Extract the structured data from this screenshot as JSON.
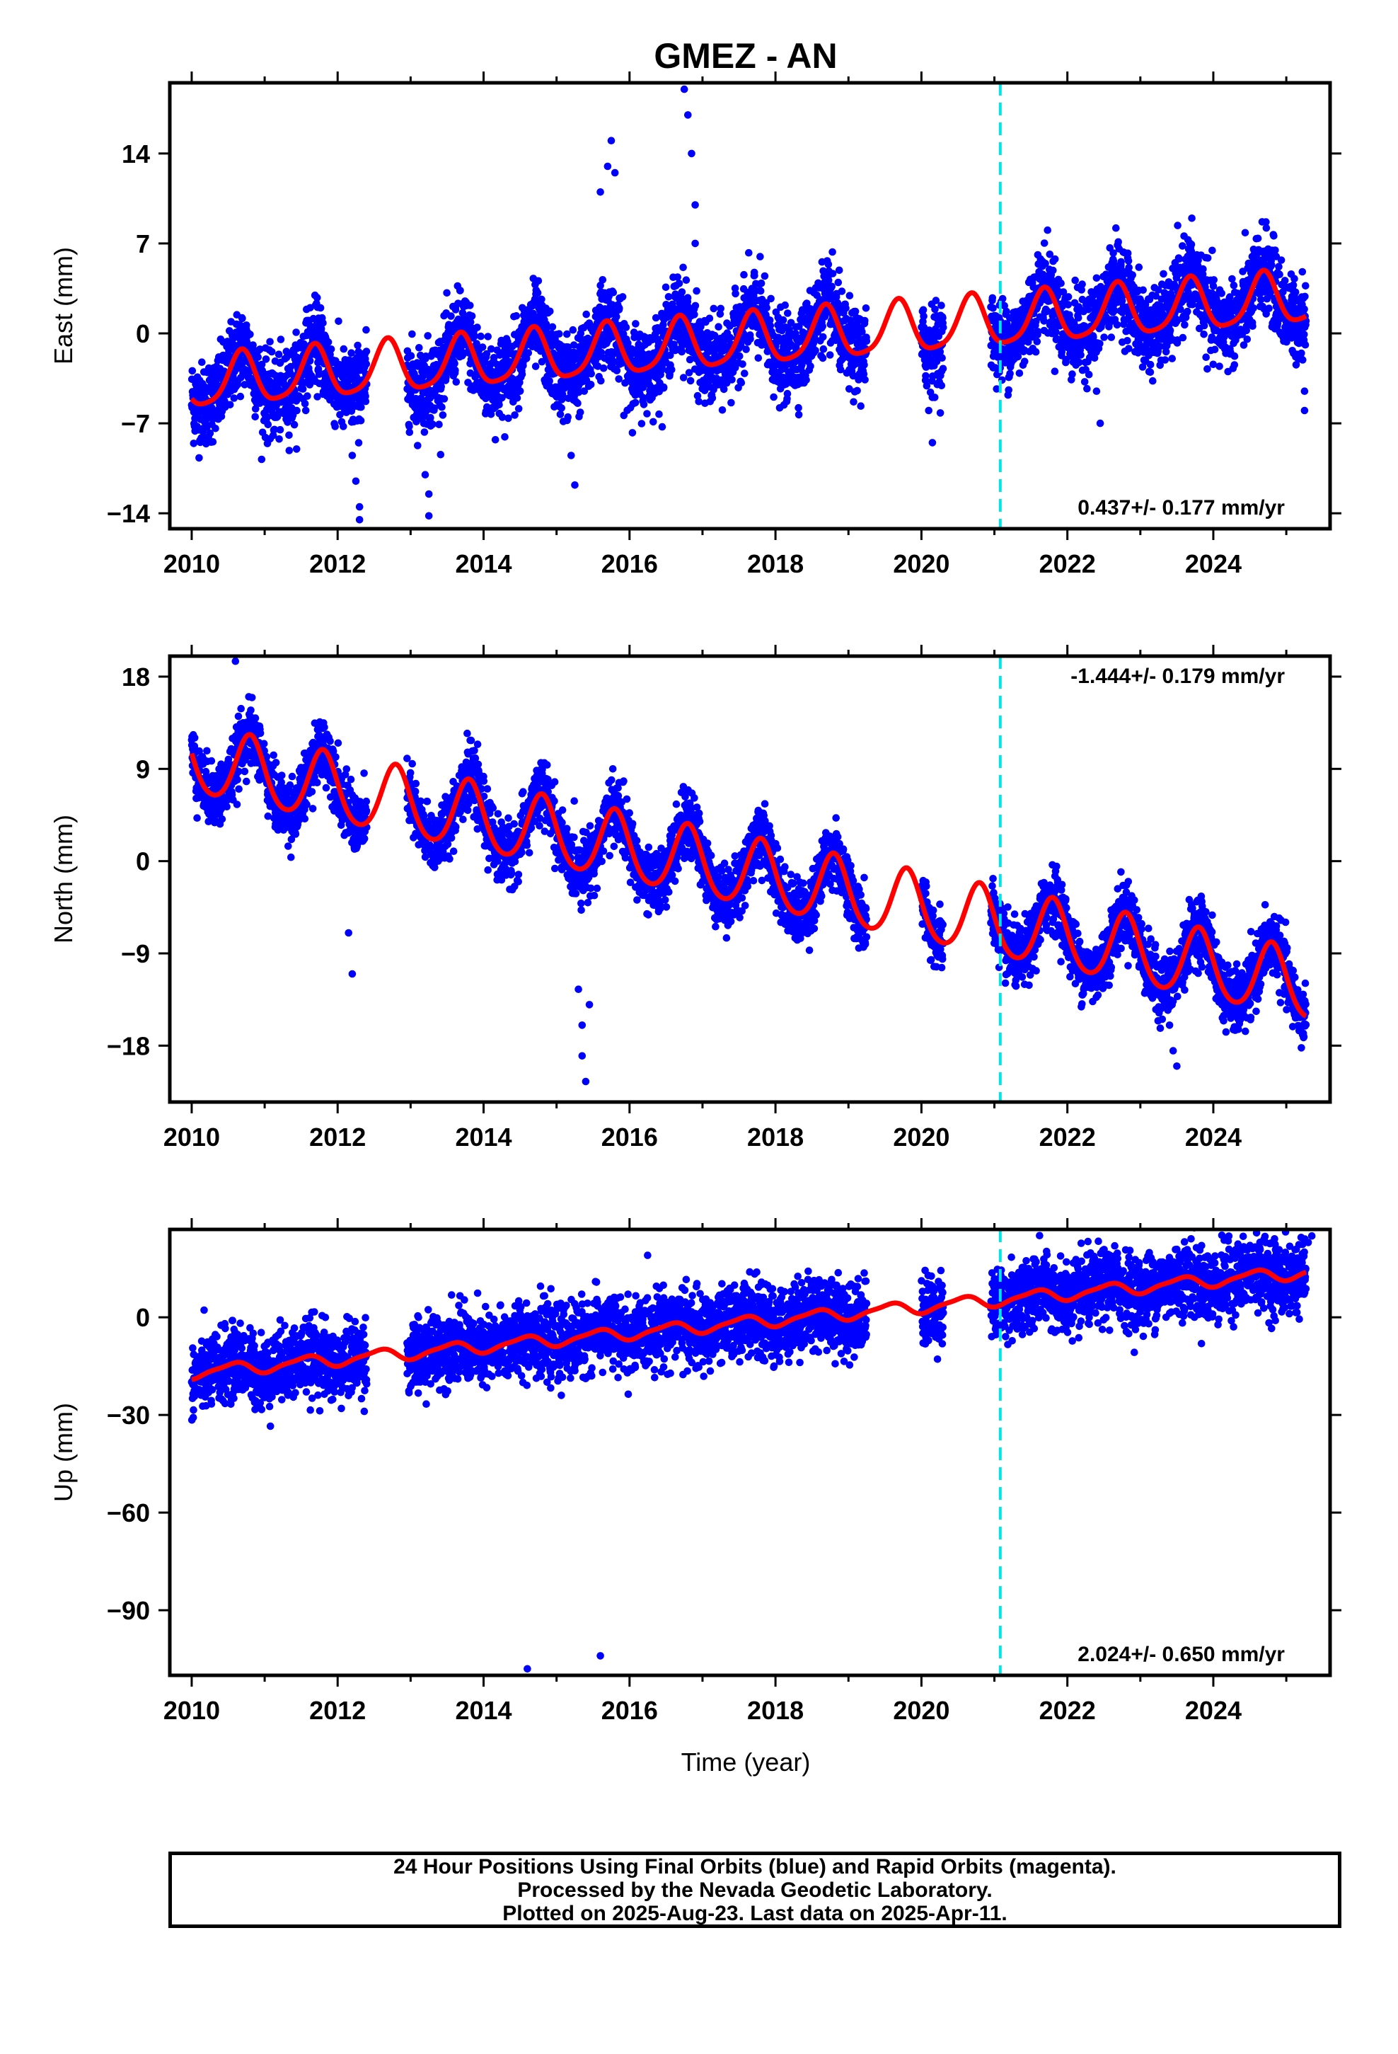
{
  "title": "GMEZ - AN",
  "xlabel": "Time (year)",
  "footer": {
    "line1": "24 Hour Positions Using Final Orbits (blue) and Rapid Orbits (magenta).",
    "line2": "Processed by the Nevada Geodetic Laboratory.",
    "line3": "Plotted on 2025-Aug-23. Last data on 2025-Apr-11."
  },
  "colors": {
    "final_orbits": "#0000ff",
    "model_fit": "#ff0000",
    "equipment_change": "#00e5e5"
  },
  "chart_data": [
    {
      "type": "scatter",
      "component": "east",
      "ylabel": "East (mm)",
      "xlim": [
        2009.7,
        2025.6
      ],
      "ylim": [
        -15.2,
        19.5
      ],
      "xticks": [
        2010,
        2012,
        2014,
        2016,
        2018,
        2020,
        2022,
        2024
      ],
      "yticks": [
        -14,
        -7,
        0,
        7,
        14
      ],
      "ytick_labels": [
        "−14",
        "−7",
        "0",
        "7",
        "14"
      ],
      "rate": "0.437+/- 0.177 mm/yr",
      "rate_position": "bottom-right",
      "vertical_marker_x": 2021.08,
      "trend": {
        "t0": 2010.0,
        "intercept": -3.9,
        "slope": 0.437,
        "annual_amp": 2.0,
        "annual_peak": 0.68,
        "semiannual_amp": 0.4,
        "semiannual_peak": 0.2
      },
      "series": [
        {
          "name": "",
          "style": "points",
          "color": "#0000ff"
        },
        {
          "name": "",
          "style": "line",
          "color": "#ff0000"
        }
      ],
      "outliers": [
        [
          2012.2,
          -9.5
        ],
        [
          2012.25,
          -11.5
        ],
        [
          2012.3,
          -13.5
        ],
        [
          2012.3,
          -14.5
        ],
        [
          2013.2,
          -11.0
        ],
        [
          2013.25,
          -12.5
        ],
        [
          2013.25,
          -14.2
        ],
        [
          2015.2,
          -9.5
        ],
        [
          2015.25,
          -11.8
        ],
        [
          2015.6,
          11.0
        ],
        [
          2015.7,
          13.0
        ],
        [
          2015.75,
          15.0
        ],
        [
          2015.8,
          12.5
        ],
        [
          2016.75,
          19.0
        ],
        [
          2016.8,
          17.0
        ],
        [
          2016.85,
          14.0
        ],
        [
          2016.9,
          10.0
        ],
        [
          2016.9,
          7.0
        ],
        [
          2020.1,
          -6.0
        ],
        [
          2020.15,
          -8.5
        ],
        [
          2022.4,
          -4.5
        ],
        [
          2022.45,
          -7.0
        ],
        [
          2025.25,
          -4.5
        ],
        [
          2025.25,
          -6.0
        ]
      ]
    },
    {
      "type": "scatter",
      "component": "north",
      "ylabel": "North (mm)",
      "xlim": [
        2009.7,
        2025.6
      ],
      "ylim": [
        -23.5,
        20.0
      ],
      "xticks": [
        2010,
        2012,
        2014,
        2016,
        2018,
        2020,
        2022,
        2024
      ],
      "yticks": [
        -18,
        -9,
        0,
        9,
        18
      ],
      "ytick_labels": [
        "−18",
        "−9",
        "0",
        "9",
        "18"
      ],
      "rate": "-1.444+/- 0.179 mm/yr",
      "rate_position": "top-right",
      "vertical_marker_x": 2021.08,
      "trend": {
        "t0": 2010.0,
        "intercept": 9.8,
        "slope": -1.444,
        "annual_amp": 3.3,
        "annual_peak": 0.8,
        "semiannual_amp": 0.4,
        "semiannual_peak": 0.3
      },
      "series": [
        {
          "name": "",
          "style": "points",
          "color": "#0000ff"
        },
        {
          "name": "",
          "style": "line",
          "color": "#ff0000"
        }
      ],
      "outliers": [
        [
          2010.6,
          19.5
        ],
        [
          2012.15,
          -7.0
        ],
        [
          2012.2,
          -11.0
        ],
        [
          2015.3,
          -12.5
        ],
        [
          2015.35,
          -16.0
        ],
        [
          2015.35,
          -19.0
        ],
        [
          2015.4,
          -21.5
        ],
        [
          2015.45,
          -14.0
        ],
        [
          2023.4,
          -16.0
        ],
        [
          2023.45,
          -18.5
        ],
        [
          2023.5,
          -20.0
        ],
        [
          2024.3,
          -16.5
        ]
      ]
    },
    {
      "type": "scatter",
      "component": "up",
      "ylabel": "Up (mm)",
      "xlim": [
        2009.7,
        2025.6
      ],
      "ylim": [
        -110.0,
        27.0
      ],
      "xticks": [
        2010,
        2012,
        2014,
        2016,
        2018,
        2020,
        2022,
        2024
      ],
      "yticks": [
        -90,
        -60,
        -30,
        0
      ],
      "ytick_labels": [
        "−90",
        "−60",
        "−30",
        "0"
      ],
      "rate": "2.024+/- 0.650 mm/yr",
      "rate_position": "bottom-right",
      "vertical_marker_x": 2021.08,
      "trend": {
        "t0": 2010.0,
        "intercept": -17.0,
        "slope": 2.024,
        "annual_amp": 1.8,
        "annual_peak": 0.55,
        "semiannual_amp": 0.5,
        "semiannual_peak": 0.2
      },
      "series": [
        {
          "name": "",
          "style": "points",
          "color": "#0000ff"
        },
        {
          "name": "",
          "style": "line",
          "color": "#ff0000"
        }
      ],
      "outliers": [
        [
          2014.6,
          -108.0
        ],
        [
          2015.6,
          -104.0
        ],
        [
          2025.3,
          23.0
        ],
        [
          2025.35,
          25.0
        ]
      ]
    }
  ]
}
